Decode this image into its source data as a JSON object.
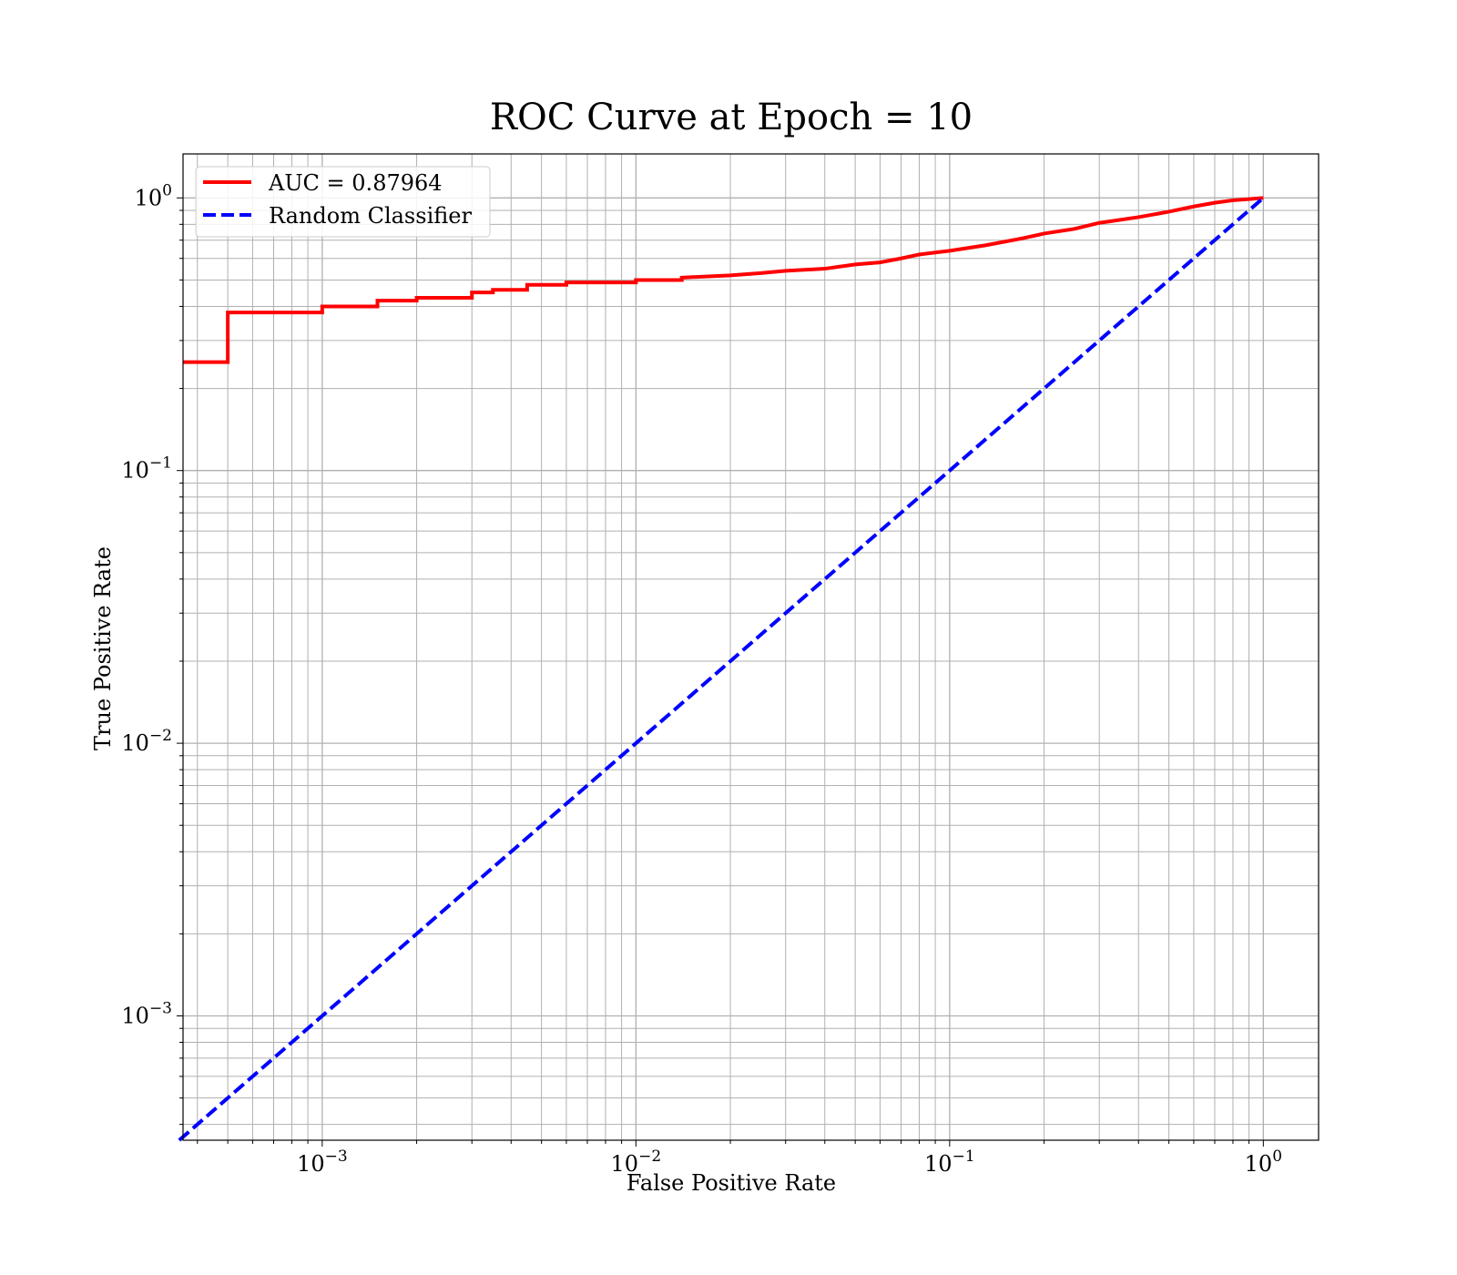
{
  "chart_data": {
    "type": "line",
    "title": "ROC Curve at Epoch = 10",
    "xlabel": "False Positive Rate",
    "ylabel": "True Positive Rate",
    "xscale": "log",
    "yscale": "log",
    "xlim": [
      0.00036,
      1.5
    ],
    "ylim": [
      0.00035,
      1.45
    ],
    "grid": "both (major and minor)",
    "legend_position": "upper-left",
    "xticks": [
      {
        "value": 0.001,
        "mantissa": "10",
        "exponent": "−3"
      },
      {
        "value": 0.01,
        "mantissa": "10",
        "exponent": "−2"
      },
      {
        "value": 0.1,
        "mantissa": "10",
        "exponent": "−1"
      },
      {
        "value": 1,
        "mantissa": "10",
        "exponent": "0"
      }
    ],
    "yticks": [
      {
        "value": 0.001,
        "mantissa": "10",
        "exponent": "−3"
      },
      {
        "value": 0.01,
        "mantissa": "10",
        "exponent": "−2"
      },
      {
        "value": 0.1,
        "mantissa": "10",
        "exponent": "−1"
      },
      {
        "value": 1,
        "mantissa": "10",
        "exponent": "0"
      }
    ],
    "series": [
      {
        "name": "AUC = 0.87964",
        "color": "#ff0000",
        "style": "solid",
        "steps": true,
        "points": [
          [
            0.00036,
            0.25
          ],
          [
            0.0005,
            0.25
          ],
          [
            0.0005,
            0.38
          ],
          [
            0.001,
            0.38
          ],
          [
            0.001,
            0.4
          ],
          [
            0.0015,
            0.4
          ],
          [
            0.0015,
            0.42
          ],
          [
            0.002,
            0.42
          ],
          [
            0.002,
            0.43
          ],
          [
            0.003,
            0.43
          ],
          [
            0.003,
            0.45
          ],
          [
            0.0035,
            0.45
          ],
          [
            0.0035,
            0.46
          ],
          [
            0.0045,
            0.46
          ],
          [
            0.0045,
            0.48
          ],
          [
            0.006,
            0.48
          ],
          [
            0.006,
            0.49
          ],
          [
            0.008,
            0.49
          ],
          [
            0.008,
            0.49
          ],
          [
            0.01,
            0.49
          ],
          [
            0.01,
            0.5
          ],
          [
            0.014,
            0.5
          ],
          [
            0.014,
            0.51
          ],
          [
            0.02,
            0.52
          ],
          [
            0.025,
            0.53
          ],
          [
            0.03,
            0.54
          ],
          [
            0.04,
            0.55
          ],
          [
            0.05,
            0.57
          ],
          [
            0.06,
            0.58
          ],
          [
            0.07,
            0.6
          ],
          [
            0.08,
            0.62
          ],
          [
            0.1,
            0.64
          ],
          [
            0.13,
            0.67
          ],
          [
            0.17,
            0.71
          ],
          [
            0.2,
            0.74
          ],
          [
            0.25,
            0.77
          ],
          [
            0.3,
            0.81
          ],
          [
            0.4,
            0.85
          ],
          [
            0.5,
            0.89
          ],
          [
            0.6,
            0.93
          ],
          [
            0.7,
            0.96
          ],
          [
            0.8,
            0.98
          ],
          [
            0.9,
            0.99
          ],
          [
            1.0,
            1.0
          ]
        ]
      },
      {
        "name": "Random Classifier",
        "color": "#0000ff",
        "style": "dashed",
        "steps": false,
        "points": [
          [
            0.00035,
            0.00035
          ],
          [
            1.0,
            1.0
          ]
        ]
      }
    ]
  }
}
